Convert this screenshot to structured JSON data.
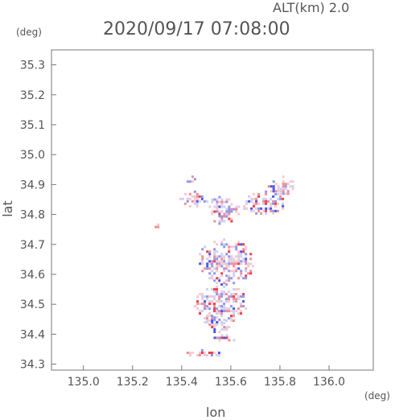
{
  "chart_data": {
    "type": "heatmap",
    "title": "2020/09/17 07:08:00",
    "subtitle": "ALT(km) 2.0",
    "xlabel": "lon",
    "ylabel": "lat",
    "xunit": "(deg)",
    "yunit": "(deg)",
    "xlim": [
      134.87,
      136.18
    ],
    "ylim": [
      34.28,
      35.35
    ],
    "x_ticks": [
      "135.0",
      "135.2",
      "135.4",
      "135.6",
      "135.8",
      "136.0"
    ],
    "y_ticks": [
      "34.3",
      "34.4",
      "34.5",
      "34.6",
      "34.7",
      "34.8",
      "34.9",
      "35.0",
      "35.1",
      "35.2",
      "35.3"
    ],
    "grid": false,
    "colors": {
      "positive": "#e8404c",
      "negative": "#4a58e8",
      "frame": "#777777"
    },
    "regions": [
      {
        "lon": [
          135.41,
          135.46
        ],
        "lat": [
          34.91,
          34.93
        ]
      },
      {
        "lon": [
          135.39,
          135.5
        ],
        "lat": [
          34.83,
          34.88
        ]
      },
      {
        "lon": [
          135.5,
          135.63
        ],
        "lat": [
          34.77,
          34.87
        ]
      },
      {
        "lon": [
          135.64,
          135.82
        ],
        "lat": [
          34.8,
          34.88
        ]
      },
      {
        "lon": [
          135.75,
          135.86
        ],
        "lat": [
          34.86,
          34.93
        ]
      },
      {
        "lon": [
          135.28,
          135.31
        ],
        "lat": [
          34.76,
          34.77
        ]
      },
      {
        "lon": [
          135.46,
          135.69
        ],
        "lat": [
          34.57,
          34.72
        ]
      },
      {
        "lon": [
          135.45,
          135.66
        ],
        "lat": [
          34.44,
          34.57
        ]
      },
      {
        "lon": [
          135.48,
          135.59
        ],
        "lat": [
          34.41,
          34.46
        ]
      },
      {
        "lon": [
          135.52,
          135.62
        ],
        "lat": [
          34.38,
          34.4
        ]
      },
      {
        "lon": [
          135.41,
          135.57
        ],
        "lat": [
          34.33,
          34.35
        ]
      }
    ]
  }
}
